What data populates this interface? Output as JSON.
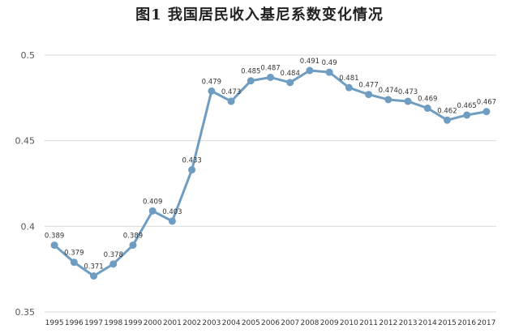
{
  "chart_data": {
    "type": "line",
    "title": "图1  我国居民收入基尼系数变化情况",
    "xlabel": "",
    "ylabel": "",
    "ylim": [
      0.35,
      0.5
    ],
    "yticks": [
      "0.35",
      "0.4",
      "0.45",
      "0.5"
    ],
    "grid": true,
    "categories": [
      "1995",
      "1996",
      "1997",
      "1998",
      "1999",
      "2000",
      "2001",
      "2002",
      "2003",
      "2004",
      "2005",
      "2006",
      "2007",
      "2008",
      "2009",
      "2010",
      "2011",
      "2012",
      "2013",
      "2014",
      "2015",
      "2016",
      "2017"
    ],
    "series": [
      {
        "color": "#6f9dc1",
        "values": [
          0.389,
          0.379,
          0.371,
          0.378,
          0.389,
          0.409,
          0.403,
          0.433,
          0.479,
          0.473,
          0.485,
          0.487,
          0.484,
          0.491,
          0.49,
          0.481,
          0.477,
          0.474,
          0.473,
          0.469,
          0.462,
          0.465,
          0.467
        ],
        "labels": [
          "0.389",
          "0.379",
          "0.371",
          "0.378",
          "0.389",
          "0.409",
          "0.403",
          "0.433",
          "0.479",
          "0.473",
          "0.485",
          "0.487",
          "0.484",
          "0.491",
          "0.49",
          "0.481",
          "0.477",
          "0.474",
          "0.473",
          "0.469",
          "0.462",
          "0.465",
          "0.467"
        ]
      }
    ]
  }
}
